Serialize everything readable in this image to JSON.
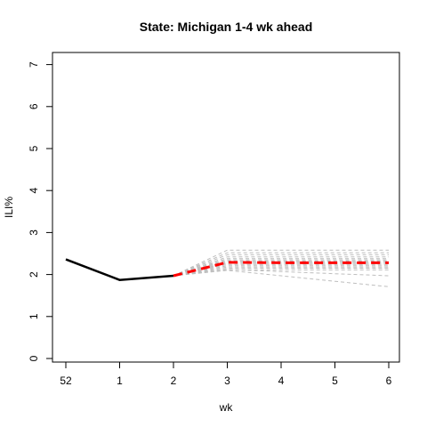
{
  "chart_data": {
    "type": "line",
    "title": "State: Michigan 1-4 wk ahead",
    "xlabel": "wk",
    "ylabel": "ILI%",
    "x_ticks": [
      "52",
      "1",
      "2",
      "3",
      "4",
      "5",
      "6"
    ],
    "y_ticks": [
      0,
      1,
      2,
      3,
      4,
      5,
      6,
      7
    ],
    "ylim": [
      0,
      7
    ],
    "observed": {
      "x": [
        "52",
        "1",
        "2"
      ],
      "values": [
        2.36,
        1.87,
        1.97
      ],
      "color": "#000000"
    },
    "forecast_mean": {
      "x": [
        "2",
        "3",
        "4",
        "5",
        "6"
      ],
      "values": [
        1.97,
        2.29,
        2.28,
        2.28,
        2.28
      ],
      "color": "#ff0000"
    },
    "ensemble": {
      "x": [
        "2",
        "3",
        "4",
        "5",
        "6"
      ],
      "color": "#bebebe",
      "members": [
        [
          1.97,
          2.58,
          2.58,
          2.58,
          2.58
        ],
        [
          1.97,
          2.52,
          2.52,
          2.52,
          2.52
        ],
        [
          1.97,
          2.47,
          2.47,
          2.47,
          2.47
        ],
        [
          1.97,
          2.42,
          2.42,
          2.42,
          2.42
        ],
        [
          1.97,
          2.38,
          2.38,
          2.38,
          2.38
        ],
        [
          1.97,
          2.35,
          2.35,
          2.35,
          2.35
        ],
        [
          1.97,
          2.32,
          2.32,
          2.32,
          2.32
        ],
        [
          1.97,
          2.29,
          2.29,
          2.29,
          2.29
        ],
        [
          1.97,
          2.27,
          2.27,
          2.27,
          2.27
        ],
        [
          1.97,
          2.24,
          2.24,
          2.24,
          2.24
        ],
        [
          1.97,
          2.21,
          2.21,
          2.21,
          2.21
        ],
        [
          1.97,
          2.18,
          2.18,
          2.18,
          2.18
        ],
        [
          1.97,
          2.15,
          2.15,
          2.15,
          2.15
        ],
        [
          1.97,
          2.11,
          2.11,
          2.11,
          2.11
        ],
        [
          1.97,
          2.12,
          2.07,
          2.02,
          1.97
        ],
        [
          1.97,
          2.1,
          1.97,
          1.84,
          1.71
        ]
      ]
    },
    "grid": false,
    "legend": "none"
  }
}
